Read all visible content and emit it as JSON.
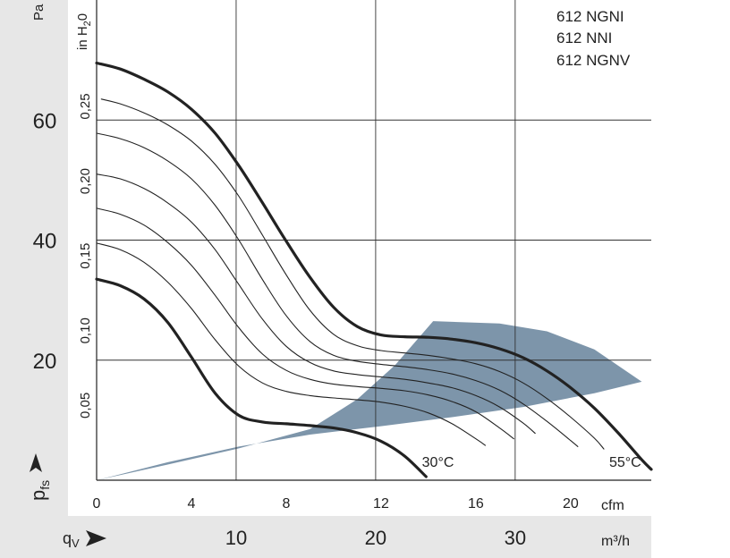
{
  "chart_data": {
    "type": "line",
    "legend": [
      "612 NGNI",
      "612 NNI",
      "612 NGNV"
    ],
    "y_unit_pa": "Pa",
    "y_unit_inh2o_parts": [
      "in H",
      "2",
      "0"
    ],
    "x_unit_cfm": "cfm",
    "x_unit_m3h": "m³/h",
    "y_axis_symbol": "p",
    "y_axis_subscript": "fs",
    "x_axis_symbol": "q",
    "x_axis_subscript": "V",
    "pa_ticks": [
      {
        "label": "20",
        "value": 20
      },
      {
        "label": "40",
        "value": 40
      },
      {
        "label": "60",
        "value": 60
      }
    ],
    "inh2o_ticks": [
      {
        "label": "0,05",
        "value": 0.05
      },
      {
        "label": "0,10",
        "value": 0.1
      },
      {
        "label": "0,15",
        "value": 0.15
      },
      {
        "label": "0,20",
        "value": 0.2
      },
      {
        "label": "0,25",
        "value": 0.25
      }
    ],
    "cfm_ticks": [
      {
        "label": "0",
        "value": 0
      },
      {
        "label": "4",
        "value": 4
      },
      {
        "label": "8",
        "value": 8
      },
      {
        "label": "12",
        "value": 12
      },
      {
        "label": "16",
        "value": 16
      },
      {
        "label": "20",
        "value": 20
      }
    ],
    "m3h_ticks": [
      {
        "label": "10",
        "value": 10
      },
      {
        "label": "20",
        "value": 20
      },
      {
        "label": "30",
        "value": 30
      }
    ],
    "xlim_cfm": [
      0,
      23.4
    ],
    "ylim_pa": [
      0,
      80
    ],
    "annotations": [
      {
        "text": "30°C",
        "x": 14.4,
        "y": 2.2
      },
      {
        "text": "55°C",
        "x": 22.3,
        "y": 2.2
      }
    ],
    "series": [
      {
        "role": "max",
        "points": [
          [
            0,
            69.5
          ],
          [
            1,
            68.5
          ],
          [
            2,
            66.8
          ],
          [
            3,
            64.7
          ],
          [
            4,
            61.8
          ],
          [
            5,
            57.8
          ],
          [
            6,
            52.4
          ],
          [
            7,
            46.2
          ],
          [
            8,
            39.8
          ],
          [
            9,
            33.8
          ],
          [
            10,
            28.8
          ],
          [
            11,
            25.6
          ],
          [
            12,
            24.2
          ],
          [
            13,
            23.9
          ],
          [
            14,
            23.8
          ],
          [
            15,
            23.5
          ],
          [
            16,
            22.9
          ],
          [
            17,
            21.9
          ],
          [
            18,
            20.4
          ],
          [
            19,
            18.2
          ],
          [
            20,
            15.4
          ],
          [
            21,
            12.0
          ],
          [
            22,
            7.9
          ],
          [
            23,
            3.4
          ],
          [
            23.4,
            1.8
          ]
        ]
      },
      {
        "role": "mid",
        "points": [
          [
            0.2,
            63.5
          ],
          [
            1,
            62.7
          ],
          [
            2,
            61.2
          ],
          [
            3,
            59.2
          ],
          [
            4,
            56.5
          ],
          [
            5,
            52.6
          ],
          [
            6,
            47.3
          ],
          [
            7,
            40.8
          ],
          [
            8,
            34.2
          ],
          [
            9,
            28.3
          ],
          [
            10,
            24.3
          ],
          [
            11,
            22.4
          ],
          [
            12,
            21.6
          ],
          [
            13,
            21.2
          ],
          [
            14,
            20.8
          ],
          [
            15,
            20.2
          ],
          [
            16,
            19.4
          ],
          [
            17,
            18.1
          ],
          [
            18,
            16.2
          ],
          [
            19,
            13.6
          ],
          [
            20,
            10.5
          ],
          [
            21,
            7.0
          ],
          [
            21.4,
            5.2
          ]
        ]
      },
      {
        "role": "mid",
        "points": [
          [
            0,
            57.8
          ],
          [
            1,
            56.9
          ],
          [
            2,
            55.4
          ],
          [
            3,
            53.2
          ],
          [
            4,
            50.2
          ],
          [
            5,
            45.8
          ],
          [
            6,
            40.0
          ],
          [
            7,
            33.4
          ],
          [
            8,
            27.4
          ],
          [
            9,
            23.1
          ],
          [
            10,
            20.8
          ],
          [
            11,
            19.8
          ],
          [
            12,
            19.3
          ],
          [
            13,
            18.9
          ],
          [
            14,
            18.4
          ],
          [
            15,
            17.7
          ],
          [
            16,
            16.6
          ],
          [
            17,
            15.0
          ],
          [
            18,
            12.7
          ],
          [
            19,
            9.8
          ],
          [
            20,
            6.6
          ],
          [
            20.3,
            5.6
          ]
        ]
      },
      {
        "role": "mid",
        "points": [
          [
            0,
            51.0
          ],
          [
            1,
            50.2
          ],
          [
            2,
            48.6
          ],
          [
            3,
            46.2
          ],
          [
            4,
            43.0
          ],
          [
            5,
            38.4
          ],
          [
            6,
            32.6
          ],
          [
            7,
            26.8
          ],
          [
            8,
            22.3
          ],
          [
            9,
            19.6
          ],
          [
            10,
            18.2
          ],
          [
            11,
            17.6
          ],
          [
            12,
            17.2
          ],
          [
            13,
            16.8
          ],
          [
            14,
            16.2
          ],
          [
            15,
            15.4
          ],
          [
            16,
            14.1
          ],
          [
            17,
            12.2
          ],
          [
            18,
            9.5
          ],
          [
            18.5,
            7.8
          ]
        ]
      },
      {
        "role": "mid",
        "points": [
          [
            0,
            45.3
          ],
          [
            1,
            44.3
          ],
          [
            2,
            42.5
          ],
          [
            3,
            39.6
          ],
          [
            4,
            35.8
          ],
          [
            5,
            30.8
          ],
          [
            6,
            25.4
          ],
          [
            7,
            21.0
          ],
          [
            8,
            18.3
          ],
          [
            9,
            16.8
          ],
          [
            10,
            16.0
          ],
          [
            11,
            15.6
          ],
          [
            12,
            15.3
          ],
          [
            13,
            14.9
          ],
          [
            14,
            14.2
          ],
          [
            15,
            13.1
          ],
          [
            16,
            11.4
          ],
          [
            17,
            8.7
          ],
          [
            17.6,
            6.9
          ]
        ]
      },
      {
        "role": "mid",
        "points": [
          [
            0,
            39.5
          ],
          [
            1,
            38.4
          ],
          [
            2,
            36.3
          ],
          [
            3,
            33.0
          ],
          [
            4,
            28.6
          ],
          [
            5,
            23.4
          ],
          [
            6,
            19.0
          ],
          [
            7,
            16.2
          ],
          [
            8,
            14.8
          ],
          [
            9,
            14.1
          ],
          [
            10,
            13.7
          ],
          [
            11,
            13.4
          ],
          [
            12,
            13.0
          ],
          [
            13,
            12.3
          ],
          [
            14,
            11.2
          ],
          [
            15,
            9.4
          ],
          [
            16,
            6.9
          ],
          [
            16.4,
            5.8
          ]
        ]
      },
      {
        "role": "min",
        "points": [
          [
            0,
            33.5
          ],
          [
            1,
            32.4
          ],
          [
            2,
            30.2
          ],
          [
            3,
            26.3
          ],
          [
            4,
            20.5
          ],
          [
            5,
            14.5
          ],
          [
            6,
            10.8
          ],
          [
            7,
            9.7
          ],
          [
            8,
            9.4
          ],
          [
            9,
            9.1
          ],
          [
            10,
            8.7
          ],
          [
            11,
            7.9
          ],
          [
            12,
            6.5
          ],
          [
            13,
            4.0
          ],
          [
            13.9,
            0.6
          ]
        ]
      }
    ],
    "operating_region": [
      [
        0,
        0
      ],
      [
        3,
        2.6
      ],
      [
        6,
        5.3
      ],
      [
        9,
        8.5
      ],
      [
        11,
        13.5
      ],
      [
        12.6,
        19.2
      ],
      [
        14.2,
        26.5
      ],
      [
        17,
        26.1
      ],
      [
        19,
        24.8
      ],
      [
        21,
        21.8
      ],
      [
        23,
        16.4
      ],
      [
        21,
        14.5
      ],
      [
        18,
        12.2
      ],
      [
        15,
        10.5
      ],
      [
        12,
        9.0
      ],
      [
        9,
        7.6
      ],
      [
        6,
        5.6
      ],
      [
        3,
        3.0
      ],
      [
        0,
        0
      ]
    ]
  }
}
